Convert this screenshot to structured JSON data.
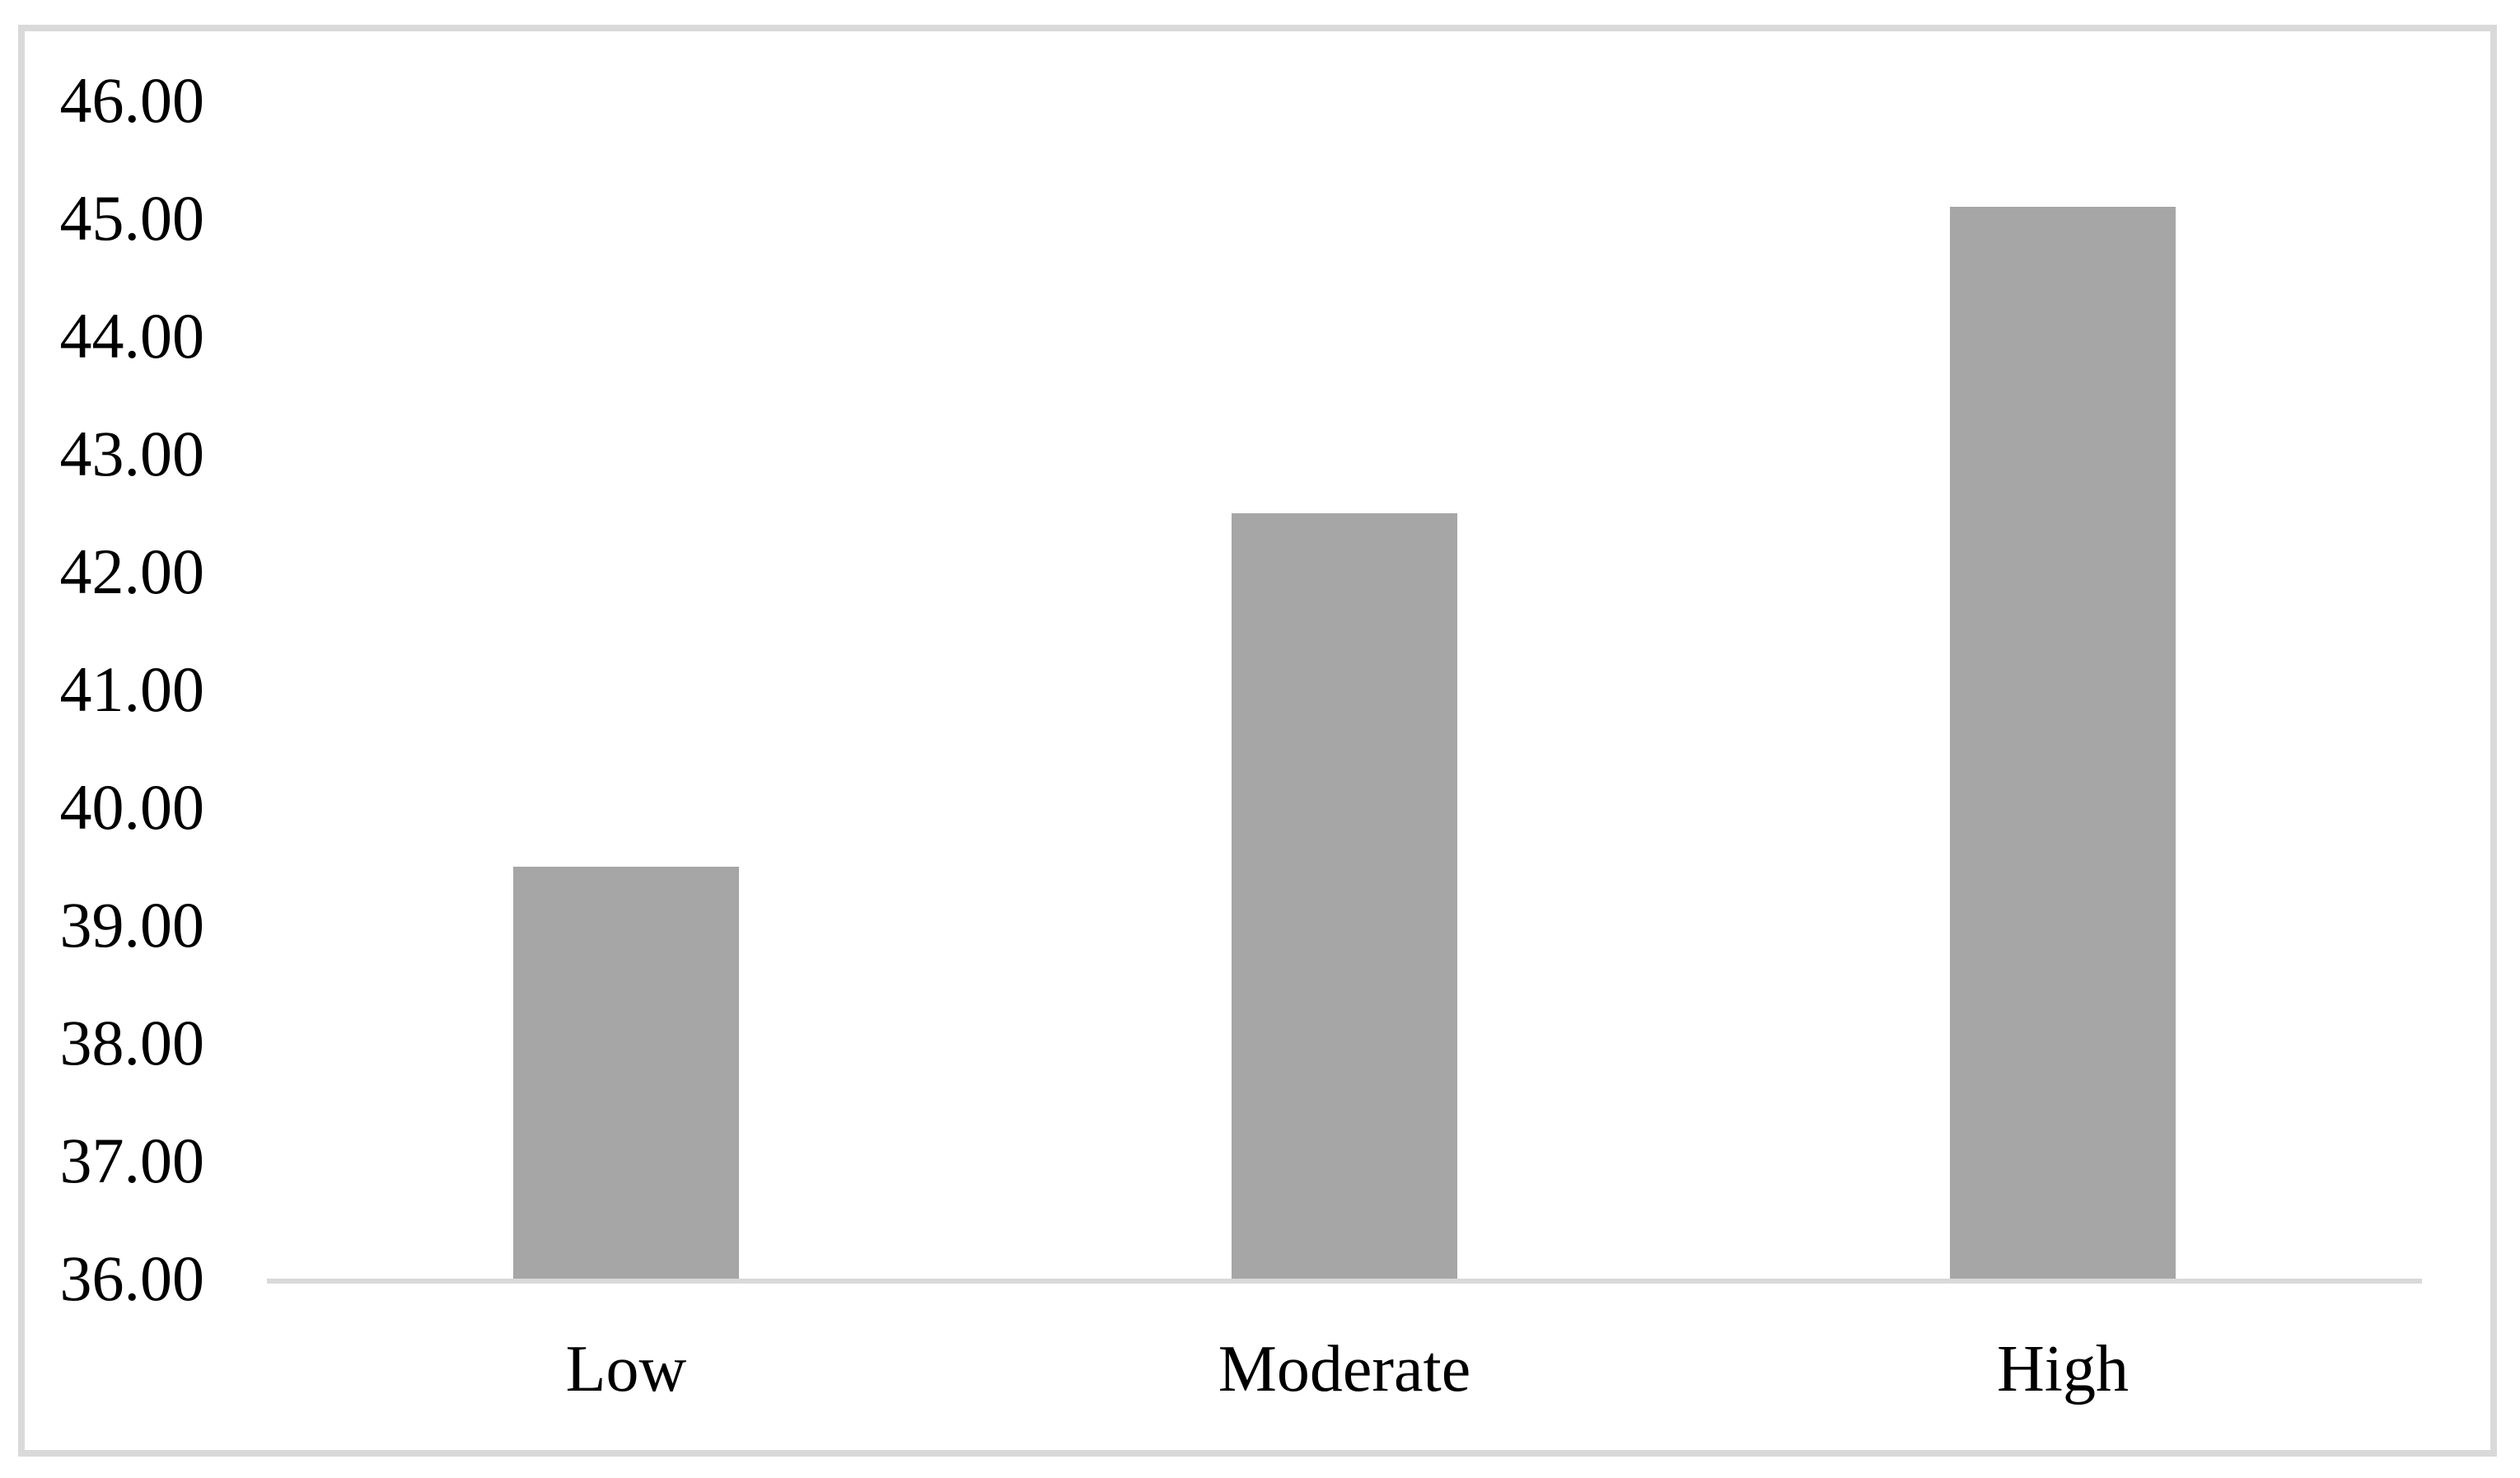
{
  "chart_data": {
    "type": "bar",
    "title": "",
    "xlabel": "",
    "ylabel": "",
    "categories": [
      "Low",
      "Moderate",
      "High"
    ],
    "values": [
      39.5,
      42.5,
      45.1
    ],
    "ylim": [
      36,
      46
    ],
    "ytick_step": 1,
    "ytick_decimals": 2,
    "ytick_labels": [
      "46.00",
      "45.00",
      "44.00",
      "43.00",
      "42.00",
      "41.00",
      "40.00",
      "39.00",
      "38.00",
      "37.00",
      "36.00"
    ],
    "grid": false,
    "legend": null,
    "colors": {
      "bar": "#a6a6a6",
      "axis_line": "#d9d9d9",
      "frame_border": "#d9d9d9",
      "text": "#000000",
      "background": "#ffffff"
    }
  }
}
